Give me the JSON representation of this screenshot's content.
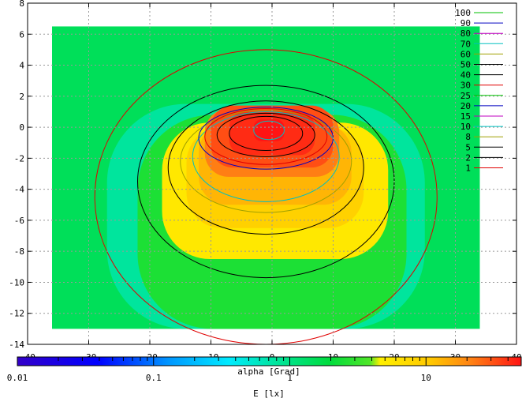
{
  "chart_data": {
    "type": "heatmap",
    "title": "",
    "xlabel": "alpha [Grad]",
    "ylabel": "",
    "colorbar_label": "E [lx]",
    "xlim": [
      -40,
      40
    ],
    "ylim": [
      -14,
      8
    ],
    "x_ticks": [
      -40,
      -30,
      -20,
      -10,
      0,
      10,
      20,
      30,
      40
    ],
    "y_ticks": [
      -14,
      -12,
      -10,
      -8,
      -6,
      -4,
      -2,
      0,
      2,
      4,
      6,
      8
    ],
    "x_tick_labels": [
      "-40",
      "-30",
      "-20",
      "-10",
      "0",
      "10",
      "20",
      "30",
      "40"
    ],
    "y_tick_labels": [
      "-14",
      "-12",
      "-10",
      "-8",
      "-6",
      "-4",
      "-2",
      "0",
      "2",
      "4",
      "6",
      "8"
    ],
    "grid": true,
    "legend_placement": "top-right",
    "colorbar": {
      "scale": "log",
      "range": [
        0.01,
        50
      ],
      "tick_labels": [
        "0.01",
        "0.1",
        "1",
        "10"
      ],
      "tick_values": [
        0.01,
        0.1,
        1,
        10
      ]
    },
    "data_extent": {
      "x": [
        -36,
        34
      ],
      "y": [
        -13,
        6.5
      ]
    },
    "background_level": 1.5,
    "contours": [
      {
        "level": "100",
        "color": "#00c000"
      },
      {
        "level": "90",
        "color": "#0000c0"
      },
      {
        "level": "80",
        "color": "#c000c0"
      },
      {
        "level": "70",
        "color": "#00c0c0"
      },
      {
        "level": "60",
        "color": "#a0a000"
      },
      {
        "level": "50",
        "color": "#000000"
      },
      {
        "level": "40",
        "color": "#000000"
      },
      {
        "level": "30",
        "color": "#e00000"
      },
      {
        "level": "25",
        "color": "#00c000"
      },
      {
        "level": "20",
        "color": "#0000c0"
      },
      {
        "level": "15",
        "color": "#c000c0"
      },
      {
        "level": "10",
        "color": "#00c0c0"
      },
      {
        "level": "8",
        "color": "#a0a000"
      },
      {
        "level": "5",
        "color": "#000000"
      },
      {
        "level": "2",
        "color": "#000000"
      },
      {
        "level": "1",
        "color": "#e00000"
      }
    ],
    "regions": [
      {
        "level": 0.8,
        "x": [
          -27,
          25
        ],
        "y": [
          -13,
          1.5
        ]
      },
      {
        "level": 2.5,
        "x": [
          -22,
          22
        ],
        "y": [
          -13,
          0.8
        ]
      },
      {
        "level": 5.5,
        "x": [
          -18,
          19
        ],
        "y": [
          -8.5,
          0.3
        ]
      },
      {
        "level": 9,
        "x": [
          -14,
          15
        ],
        "y": [
          -6.5,
          0
        ]
      },
      {
        "level": 13,
        "x": [
          -12,
          13
        ],
        "y": [
          -5,
          0.2
        ]
      },
      {
        "level": 22,
        "x": [
          -11,
          11
        ],
        "y": [
          -3.2,
          1.2
        ]
      },
      {
        "level": 32,
        "x": [
          -10,
          10
        ],
        "y": [
          -2.6,
          1.4
        ]
      },
      {
        "level": 42,
        "x": [
          -7,
          7
        ],
        "y": [
          -1.8,
          1.0
        ]
      },
      {
        "level": 60,
        "x": [
          -3,
          2
        ],
        "y": [
          -0.9,
          0.5
        ]
      }
    ]
  }
}
